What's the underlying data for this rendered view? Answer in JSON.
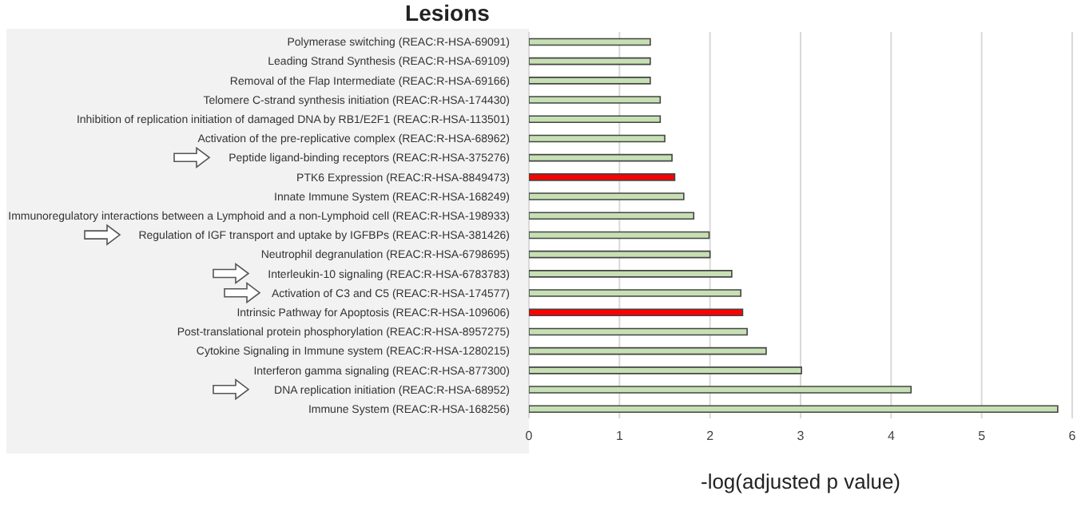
{
  "chart_data": {
    "type": "bar",
    "orientation": "horizontal",
    "title": "Lesions",
    "xlabel": "-log(adjusted p value)",
    "categories": [
      "Polymerase switching (REAC:R-HSA-69091)",
      "Leading Strand Synthesis (REAC:R-HSA-69109)",
      "Removal of the Flap Intermediate (REAC:R-HSA-69166)",
      "Telomere C-strand synthesis initiation (REAC:R-HSA-174430)",
      "Inhibition of replication initiation of damaged DNA by RB1/E2F1 (REAC:R-HSA-113501)",
      "Activation of the pre-replicative complex (REAC:R-HSA-68962)",
      "Peptide ligand-binding receptors (REAC:R-HSA-375276)",
      "PTK6 Expression (REAC:R-HSA-8849473)",
      "Innate Immune System (REAC:R-HSA-168249)",
      "Immunoregulatory interactions between a Lymphoid and a non-Lymphoid cell (REAC:R-HSA-198933)",
      "Regulation of IGF transport and uptake by IGFBPs (REAC:R-HSA-381426)",
      "Neutrophil degranulation (REAC:R-HSA-6798695)",
      "Interleukin-10 signaling (REAC:R-HSA-6783783)",
      "Activation of C3 and C5 (REAC:R-HSA-174577)",
      "Intrinsic Pathway for Apoptosis (REAC:R-HSA-109606)",
      "Post-translational protein phosphorylation (REAC:R-HSA-8957275)",
      "Cytokine Signaling in Immune system (REAC:R-HSA-1280215)",
      "Interferon gamma signaling (REAC:R-HSA-877300)",
      "DNA replication initiation (REAC:R-HSA-68952)",
      "Immune System (REAC:R-HSA-168256)"
    ],
    "values": [
      1.34,
      1.34,
      1.34,
      1.45,
      1.45,
      1.5,
      1.58,
      1.61,
      1.71,
      1.82,
      1.99,
      2.0,
      2.24,
      2.34,
      2.36,
      2.41,
      2.62,
      3.01,
      4.22,
      5.84
    ],
    "colors": [
      "#c6e0b4",
      "#c6e0b4",
      "#c6e0b4",
      "#c6e0b4",
      "#c6e0b4",
      "#c6e0b4",
      "#c6e0b4",
      "#ff0000",
      "#c6e0b4",
      "#c6e0b4",
      "#c6e0b4",
      "#c6e0b4",
      "#c6e0b4",
      "#c6e0b4",
      "#ff0000",
      "#c6e0b4",
      "#c6e0b4",
      "#c6e0b4",
      "#c6e0b4",
      "#c6e0b4"
    ],
    "xlim": [
      0,
      6
    ],
    "xticks": [
      0,
      1,
      2,
      3,
      4,
      5,
      6
    ],
    "grid": "x"
  }
}
